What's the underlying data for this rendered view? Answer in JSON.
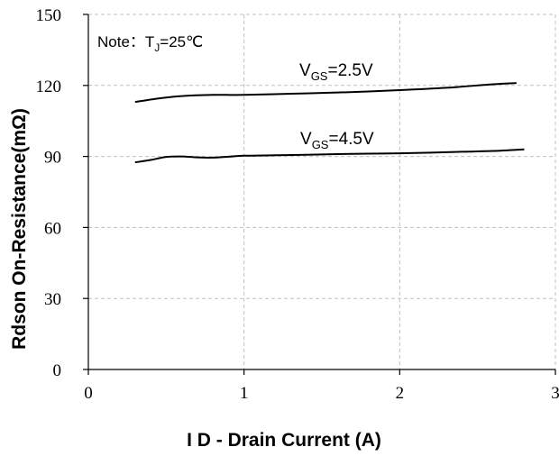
{
  "chart_data": {
    "type": "line",
    "xlabel": "I D - Drain Current (A)",
    "ylabel": "Rdson On-Resistance(mΩ)",
    "xlim": [
      0,
      3
    ],
    "ylim": [
      0,
      150
    ],
    "xticks": [
      "0",
      "1",
      "2",
      "3"
    ],
    "yticks": [
      "0",
      "30",
      "60",
      "90",
      "120",
      "150"
    ],
    "grid": true,
    "note": {
      "prefix": "Note：T",
      "sub": "J",
      "suffix": "=25℃"
    },
    "series": [
      {
        "name_main": "V",
        "name_sub": "GS",
        "name_tail": "=2.5V",
        "x": [
          0.3,
          0.45,
          0.6,
          0.8,
          1.0,
          1.3,
          1.6,
          2.0,
          2.3,
          2.6,
          2.75
        ],
        "y": [
          113,
          114.5,
          115.5,
          116,
          116,
          116.5,
          117,
          118,
          119,
          120.5,
          121
        ]
      },
      {
        "name_main": "V",
        "name_sub": "GS",
        "name_tail": "=4.5V",
        "x": [
          0.3,
          0.4,
          0.5,
          0.6,
          0.7,
          0.8,
          0.9,
          1.0,
          1.2,
          1.4,
          1.6,
          1.8,
          2.0,
          2.2,
          2.4,
          2.6,
          2.8
        ],
        "y": [
          87.5,
          88.5,
          89.8,
          90,
          89.6,
          89.5,
          89.9,
          90.3,
          90.5,
          90.7,
          91,
          91.2,
          91.3,
          91.6,
          92,
          92.3,
          93
        ]
      }
    ]
  }
}
